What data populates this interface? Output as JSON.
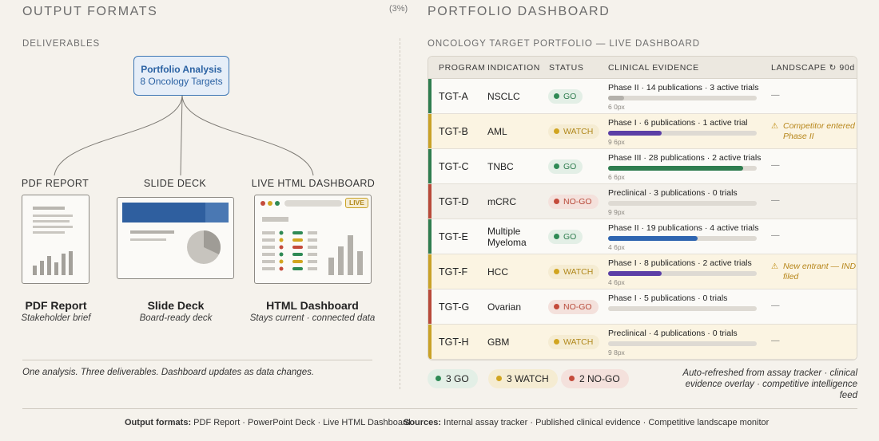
{
  "left": {
    "section_title": "OUTPUT FORMATS",
    "fragment": "(3%)",
    "subheading": "DELIVERABLES",
    "root": {
      "line1": "Portfolio Analysis",
      "line2": "8 Oncology Targets"
    },
    "branches": [
      {
        "label": "PDF REPORT",
        "title": "PDF Report",
        "subtitle": "Stakeholder brief"
      },
      {
        "label": "SLIDE DECK",
        "title": "Slide Deck",
        "subtitle": "Board-ready deck"
      },
      {
        "label": "LIVE HTML DASHBOARD",
        "title": "HTML Dashboard",
        "subtitle": "Stays current · connected data"
      }
    ],
    "live_badge": "LIVE",
    "footer": "One analysis. Three deliverables. Dashboard updates as data changes."
  },
  "right": {
    "section_title": "PORTFOLIO DASHBOARD",
    "subheading": "ONCOLOGY TARGET PORTFOLIO — LIVE DASHBOARD",
    "columns": [
      "PROGRAM",
      "INDICATION",
      "STATUS",
      "CLINICAL EVIDENCE",
      "LANDSCAPE ↻ 90d"
    ],
    "rows": [
      {
        "program": "TGT-A",
        "indication": "NSCLC",
        "status": "GO",
        "evidence": "Phase II · 14 publications · 3 active trials",
        "progress": 0.11,
        "bar_color": "#b3b0aa",
        "px_label": "6 0px",
        "landscape": "—",
        "warn": false
      },
      {
        "program": "TGT-B",
        "indication": "AML",
        "status": "WATCH",
        "evidence": "Phase I · 6 publications · 1 active trial",
        "progress": 0.36,
        "bar_color": "#5b3fa6",
        "px_label": "9 6px",
        "landscape": "Competitor entered Phase II",
        "warn": true
      },
      {
        "program": "TGT-C",
        "indication": "TNBC",
        "status": "GO",
        "evidence": "Phase III · 28 publications · 2 active trials",
        "progress": 0.91,
        "bar_color": "#2f7d4f",
        "px_label": "6 6px",
        "landscape": "—",
        "warn": false
      },
      {
        "program": "TGT-D",
        "indication": "mCRC",
        "status": "NO-GO",
        "evidence": "Preclinical · 3 publications · 0 trials",
        "progress": 0.0,
        "bar_color": "#b3b0aa",
        "px_label": "9 9px",
        "landscape": "—",
        "warn": false
      },
      {
        "program": "TGT-E",
        "indication": "Multiple Myeloma",
        "status": "GO",
        "evidence": "Phase II · 19 publications · 4 active trials",
        "progress": 0.6,
        "bar_color": "#2f65b0",
        "px_label": "4 6px",
        "landscape": "—",
        "warn": false
      },
      {
        "program": "TGT-F",
        "indication": "HCC",
        "status": "WATCH",
        "evidence": "Phase I · 8 publications · 2 active trials",
        "progress": 0.36,
        "bar_color": "#5b3fa6",
        "px_label": "4 6px",
        "landscape": "New entrant — IND filed",
        "warn": true
      },
      {
        "program": "TGT-G",
        "indication": "Ovarian",
        "status": "NO-GO",
        "evidence": "Phase I · 5 publications · 0 trials",
        "progress": 0.0,
        "bar_color": "#b3b0aa",
        "px_label": "",
        "landscape": "—",
        "warn": false
      },
      {
        "program": "TGT-H",
        "indication": "GBM",
        "status": "WATCH",
        "evidence": "Preclinical · 4 publications · 0 trials",
        "progress": 0.0,
        "bar_color": "#b3b0aa",
        "px_label": "9 8px",
        "landscape": "—",
        "warn": false
      }
    ],
    "summary": [
      {
        "label": "3 GO",
        "status": "GO"
      },
      {
        "label": "3 WATCH",
        "status": "WATCH"
      },
      {
        "label": "2 NO-GO",
        "status": "NO-GO"
      }
    ],
    "auto_note": "Auto-refreshed from assay tracker · clinical evidence overlay · competitive intelligence feed"
  },
  "status_colors": {
    "GO": {
      "accent": "#2f7d4f",
      "dot": "#2f8a55",
      "text": "#2f7d4f",
      "bg": "#e3efe6"
    },
    "WATCH": {
      "accent": "#c9a227",
      "dot": "#d1a520",
      "text": "#b0871a",
      "bg": "#f5ecd2"
    },
    "NO-GO": {
      "accent": "#b84a3a",
      "dot": "#c44b3b",
      "text": "#b84a3a",
      "bg": "#f4e1dc"
    }
  },
  "footer": {
    "formats_label": "Output formats:",
    "formats_value": "PDF Report · PowerPoint Deck · Live HTML Dashboard",
    "sources_label": "Sources:",
    "sources_value": "Internal assay tracker · Published clinical evidence · Competitive landscape monitor"
  }
}
